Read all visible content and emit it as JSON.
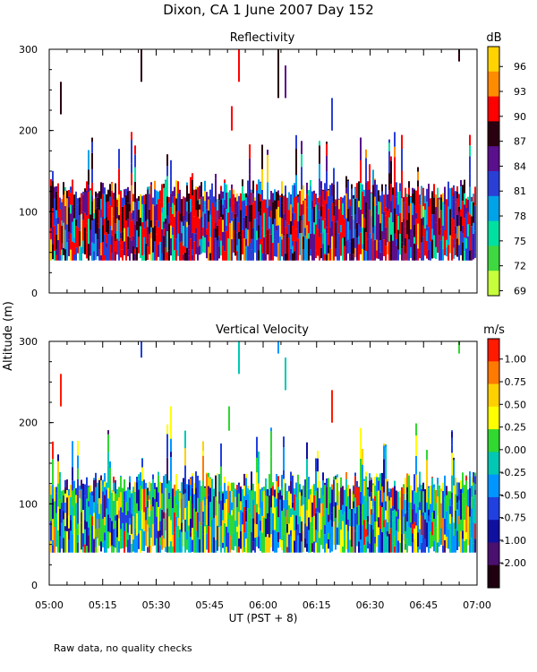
{
  "title": "Dixon, CA  1 June 2007  Day 152",
  "ylabel": "Altitude (m)",
  "xlabel": "UT  (PST + 8)",
  "footnote": "Raw data, no quality checks",
  "x_ticks": [
    "05:00",
    "05:15",
    "05:30",
    "05:45",
    "06:00",
    "06:15",
    "06:30",
    "06:45",
    "07:00"
  ],
  "chart_data": [
    {
      "type": "heatmap",
      "title": "Reflectivity",
      "units": "dB",
      "xlim": [
        "05:00",
        "07:00"
      ],
      "ylim": [
        0,
        300
      ],
      "y_ticks": [
        0,
        100,
        200,
        300
      ],
      "echo_layer_m": [
        40,
        140
      ],
      "scattered_echo_top_m": 300,
      "colorbar": {
        "labels": [
          "96",
          "93",
          "90",
          "87",
          "84",
          "81",
          "78",
          "75",
          "72",
          "69"
        ],
        "colors": [
          "#ffd400",
          "#ff8c00",
          "#ff0000",
          "#2a0010",
          "#5a0f8c",
          "#2a3fd6",
          "#00a2e8",
          "#00e0a0",
          "#40d840",
          "#c8ff3c"
        ]
      }
    },
    {
      "type": "heatmap",
      "title": "Vertical Velocity",
      "units": "m/s",
      "xlim": [
        "05:00",
        "07:00"
      ],
      "ylim": [
        0,
        300
      ],
      "y_ticks": [
        0,
        100,
        200,
        300
      ],
      "echo_layer_m": [
        40,
        140
      ],
      "scattered_echo_top_m": 300,
      "colorbar": {
        "labels": [
          "1.00",
          "0.75",
          "0.50",
          "0.25",
          "0.00",
          "-0.25",
          "-0.50",
          "-0.75",
          "-1.00",
          "-2.00"
        ],
        "colors": [
          "#ff1a00",
          "#ff7a00",
          "#ffd000",
          "#ffff00",
          "#30d830",
          "#00c8b4",
          "#0096ff",
          "#2040e0",
          "#1010a0",
          "#4a1070",
          "#200010"
        ]
      }
    }
  ]
}
